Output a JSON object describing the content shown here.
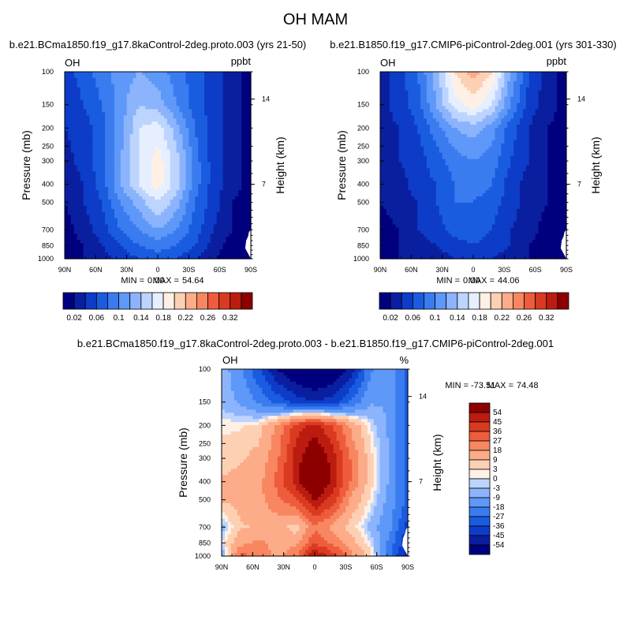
{
  "chart_data": {
    "type": "heatmap",
    "title": "OH MAM",
    "x_tick_labels": [
      "90N",
      "60N",
      "30N",
      "0",
      "30S",
      "60S",
      "90S"
    ],
    "y_tick_labels": [
      "100",
      "150",
      "200",
      "250",
      "300",
      "400",
      "500",
      "700",
      "850",
      "1000"
    ],
    "y_tick_values": [
      100,
      150,
      200,
      250,
      300,
      400,
      500,
      700,
      850,
      1000
    ],
    "height_tick_labels": [
      "14",
      "7"
    ],
    "height_tick_pressures": [
      140,
      400
    ],
    "ylabel": "Pressure (mb)",
    "ylabel_right": "Height (km)",
    "panels": [
      {
        "title": "b.e21.BCma1850.f19_g17.8kaControl-2deg.proto.003 (yrs 21-50)",
        "left_label": "OH",
        "units": "ppbt",
        "min_label": "MIN =",
        "min_value": "0.00",
        "max_label": "MAX =",
        "max_value": "54.64",
        "rows": [
          {
            "p": 100,
            "v": [
              0.05,
              0.07,
              0.09,
              0.11,
              0.12,
              0.11,
              0.09,
              0.07,
              0.05,
              0.03,
              0.01
            ]
          },
          {
            "p": 150,
            "v": [
              0.04,
              0.06,
              0.08,
              0.11,
              0.14,
              0.13,
              0.1,
              0.07,
              0.05,
              0.03,
              0.01
            ]
          },
          {
            "p": 200,
            "v": [
              0.04,
              0.05,
              0.07,
              0.11,
              0.16,
              0.17,
              0.13,
              0.08,
              0.05,
              0.03,
              0.01
            ]
          },
          {
            "p": 300,
            "v": [
              0.03,
              0.05,
              0.07,
              0.12,
              0.16,
              0.19,
              0.15,
              0.09,
              0.05,
              0.03,
              0.01
            ]
          },
          {
            "p": 400,
            "v": [
              0.02,
              0.04,
              0.07,
              0.12,
              0.16,
              0.19,
              0.15,
              0.09,
              0.05,
              0.03,
              0.01
            ]
          },
          {
            "p": 500,
            "v": [
              0.02,
              0.04,
              0.06,
              0.1,
              0.13,
              0.16,
              0.13,
              0.08,
              0.05,
              0.02,
              0.01
            ]
          },
          {
            "p": 700,
            "v": [
              0.01,
              0.03,
              0.05,
              0.08,
              0.1,
              0.12,
              0.1,
              0.07,
              0.04,
              0.02,
              0.0
            ]
          },
          {
            "p": 850,
            "v": [
              0.01,
              0.02,
              0.04,
              0.06,
              0.08,
              0.09,
              0.08,
              0.06,
              0.03,
              0.01,
              0.0
            ]
          },
          {
            "p": 1000,
            "v": [
              0.01,
              0.02,
              0.03,
              0.05,
              0.06,
              0.07,
              0.06,
              0.04,
              0.02,
              0.01,
              0.0
            ]
          }
        ],
        "colorbar": {
          "levels": [
            0.02,
            0.04,
            0.06,
            0.08,
            0.1,
            0.12,
            0.14,
            0.16,
            0.18,
            0.2,
            0.22,
            0.24,
            0.26,
            0.28,
            0.3,
            0.32
          ],
          "labels": [
            "0.02",
            "0.06",
            "0.1",
            "0.14",
            "0.18",
            "0.22",
            "0.26",
            "0.32"
          ]
        }
      },
      {
        "title": "b.e21.B1850.f19_g17.CMIP6-piControl-2deg.001 (yrs 301-330)",
        "left_label": "OH",
        "units": "ppbt",
        "min_label": "MIN =",
        "min_value": "0.00",
        "max_label": "MAX =",
        "max_value": "44.06",
        "rows": [
          {
            "p": 100,
            "v": [
              0.03,
              0.05,
              0.08,
              0.13,
              0.2,
              0.23,
              0.2,
              0.12,
              0.06,
              0.03,
              0.01
            ]
          },
          {
            "p": 150,
            "v": [
              0.03,
              0.05,
              0.07,
              0.12,
              0.17,
              0.19,
              0.16,
              0.1,
              0.05,
              0.03,
              0.01
            ]
          },
          {
            "p": 200,
            "v": [
              0.03,
              0.04,
              0.06,
              0.09,
              0.12,
              0.13,
              0.11,
              0.07,
              0.04,
              0.02,
              0.01
            ]
          },
          {
            "p": 300,
            "v": [
              0.02,
              0.04,
              0.05,
              0.07,
              0.09,
              0.1,
              0.09,
              0.06,
              0.04,
              0.02,
              0.01
            ]
          },
          {
            "p": 400,
            "v": [
              0.02,
              0.03,
              0.05,
              0.06,
              0.08,
              0.09,
              0.08,
              0.05,
              0.03,
              0.02,
              0.01
            ]
          },
          {
            "p": 500,
            "v": [
              0.02,
              0.03,
              0.04,
              0.06,
              0.08,
              0.08,
              0.07,
              0.05,
              0.03,
              0.02,
              0.01
            ]
          },
          {
            "p": 700,
            "v": [
              0.01,
              0.02,
              0.04,
              0.05,
              0.07,
              0.07,
              0.06,
              0.04,
              0.03,
              0.01,
              0.0
            ]
          },
          {
            "p": 850,
            "v": [
              0.01,
              0.02,
              0.03,
              0.04,
              0.05,
              0.06,
              0.05,
              0.04,
              0.02,
              0.01,
              0.0
            ]
          },
          {
            "p": 1000,
            "v": [
              0.01,
              0.02,
              0.02,
              0.03,
              0.04,
              0.05,
              0.04,
              0.03,
              0.02,
              0.01,
              0.0
            ]
          }
        ],
        "colorbar": {
          "levels": [
            0.02,
            0.04,
            0.06,
            0.08,
            0.1,
            0.12,
            0.14,
            0.16,
            0.18,
            0.2,
            0.22,
            0.24,
            0.26,
            0.28,
            0.3,
            0.32
          ],
          "labels": [
            "0.02",
            "0.06",
            "0.1",
            "0.14",
            "0.18",
            "0.22",
            "0.26",
            "0.32"
          ]
        }
      },
      {
        "title": "b.e21.BCma1850.f19_g17.8kaControl-2deg.proto.003 - b.e21.B1850.f19_g17.CMIP6-piControl-2deg.001",
        "left_label": "OH",
        "units": "%",
        "min_label": "MIN =",
        "min_value": "-73.51",
        "max_label": "MAX =",
        "max_value": "74.48",
        "rows": [
          {
            "p": 100,
            "v": [
              -5,
              -15,
              -35,
              -55,
              -65,
              -70,
              -65,
              -50,
              -20,
              -10,
              -30
            ]
          },
          {
            "p": 150,
            "v": [
              -5,
              -10,
              -20,
              -30,
              -40,
              -45,
              -40,
              -25,
              -10,
              -10,
              -30
            ]
          },
          {
            "p": 200,
            "v": [
              2,
              2,
              5,
              20,
              40,
              50,
              35,
              15,
              0,
              -10,
              -30
            ]
          },
          {
            "p": 300,
            "v": [
              5,
              8,
              12,
              25,
              50,
              65,
              50,
              25,
              5,
              -10,
              -30
            ]
          },
          {
            "p": 400,
            "v": [
              10,
              12,
              15,
              30,
              50,
              70,
              50,
              25,
              5,
              -10,
              -30
            ]
          },
          {
            "p": 500,
            "v": [
              10,
              12,
              15,
              25,
              35,
              55,
              40,
              15,
              2,
              -12,
              -30
            ]
          },
          {
            "p": 700,
            "v": [
              -5,
              8,
              10,
              12,
              5,
              25,
              15,
              5,
              -5,
              -15,
              -40
            ]
          },
          {
            "p": 850,
            "v": [
              0,
              15,
              20,
              15,
              15,
              35,
              25,
              12,
              0,
              -20,
              -45
            ]
          },
          {
            "p": 1000,
            "v": [
              -10,
              30,
              25,
              15,
              25,
              55,
              40,
              20,
              5,
              -25,
              -50
            ]
          }
        ],
        "colorbar": {
          "levels": [
            -54,
            -45,
            -36,
            -27,
            -18,
            -9,
            -3,
            0,
            3,
            9,
            18,
            27,
            36,
            45,
            54
          ],
          "labels": [
            "54",
            "45",
            "36",
            "27",
            "18",
            "9",
            "3",
            "0",
            "-3",
            "-9",
            "-18",
            "-27",
            "-36",
            "-45",
            "-54"
          ]
        }
      }
    ]
  },
  "colors": {
    "palette": [
      "#00007f",
      "#0a1fa0",
      "#0c3cc8",
      "#1a5ce0",
      "#3a7cf0",
      "#5e98f8",
      "#8cb4fc",
      "#bcd4fe",
      "#e6efff",
      "#fff0e6",
      "#fdd0b4",
      "#fcac88",
      "#f88660",
      "#ee5c3c",
      "#da3a20",
      "#bc1c10",
      "#8c0000"
    ]
  }
}
